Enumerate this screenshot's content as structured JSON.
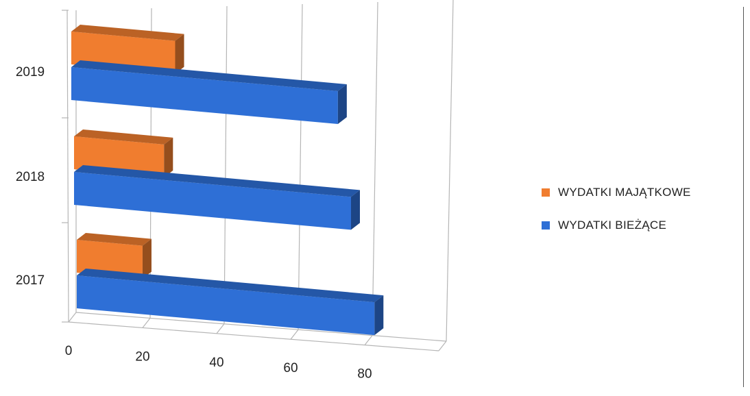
{
  "chart_data": {
    "type": "bar",
    "orientation": "horizontal",
    "style": "3d-clustered",
    "categories": [
      "2019",
      "2018",
      "2017"
    ],
    "series": [
      {
        "name": "WYDATKI MAJĄTKOWE",
        "color": "#f07d2f",
        "values": [
          30,
          26,
          19
        ]
      },
      {
        "name": "WYDATKI BIEŻĄCE",
        "color": "#2e6fd6",
        "values": [
          77,
          80,
          86
        ]
      }
    ],
    "x_ticks": [
      "0",
      "20",
      "40",
      "60",
      "80"
    ],
    "xlim": [
      0,
      100
    ],
    "title": "",
    "xlabel": "",
    "ylabel": "",
    "grid": true,
    "legend_position": "right"
  }
}
